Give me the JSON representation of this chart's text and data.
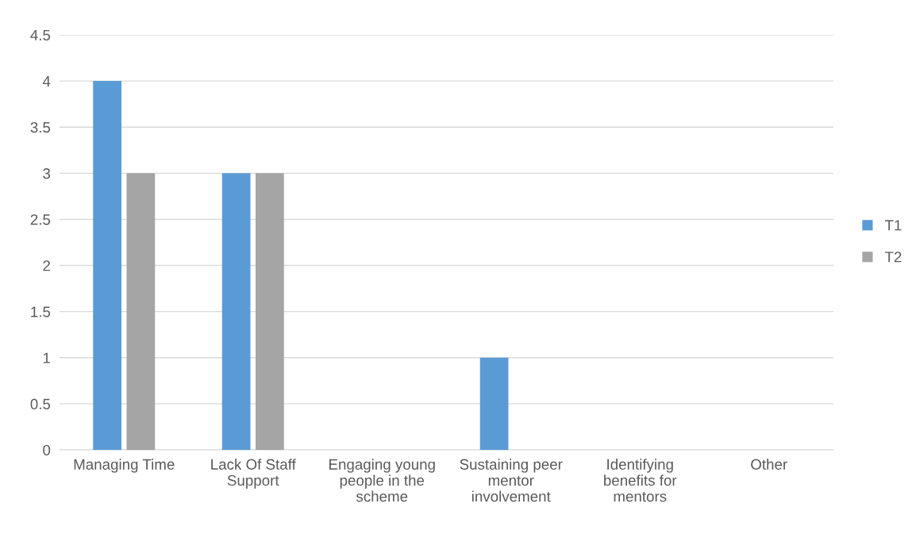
{
  "chart_data": {
    "type": "bar",
    "categories": [
      "Managing Time",
      "Lack Of Staff\nSupport",
      "Engaging young\npeople in the\nscheme",
      "Sustaining peer\nmentor\ninvolvement",
      "Identifying\nbenefits for\nmentors",
      "Other"
    ],
    "series": [
      {
        "name": "T1",
        "color": "#5b9bd5",
        "values": [
          4,
          3,
          0,
          1,
          0,
          0
        ]
      },
      {
        "name": "T2",
        "color": "#a5a5a5",
        "values": [
          3,
          3,
          0,
          0,
          0,
          0
        ]
      }
    ],
    "ylim": [
      0,
      4.5
    ],
    "yticks": [
      0,
      0.5,
      1,
      1.5,
      2,
      2.5,
      3,
      3.5,
      4,
      4.5
    ],
    "grid": "y",
    "legend": "right"
  }
}
